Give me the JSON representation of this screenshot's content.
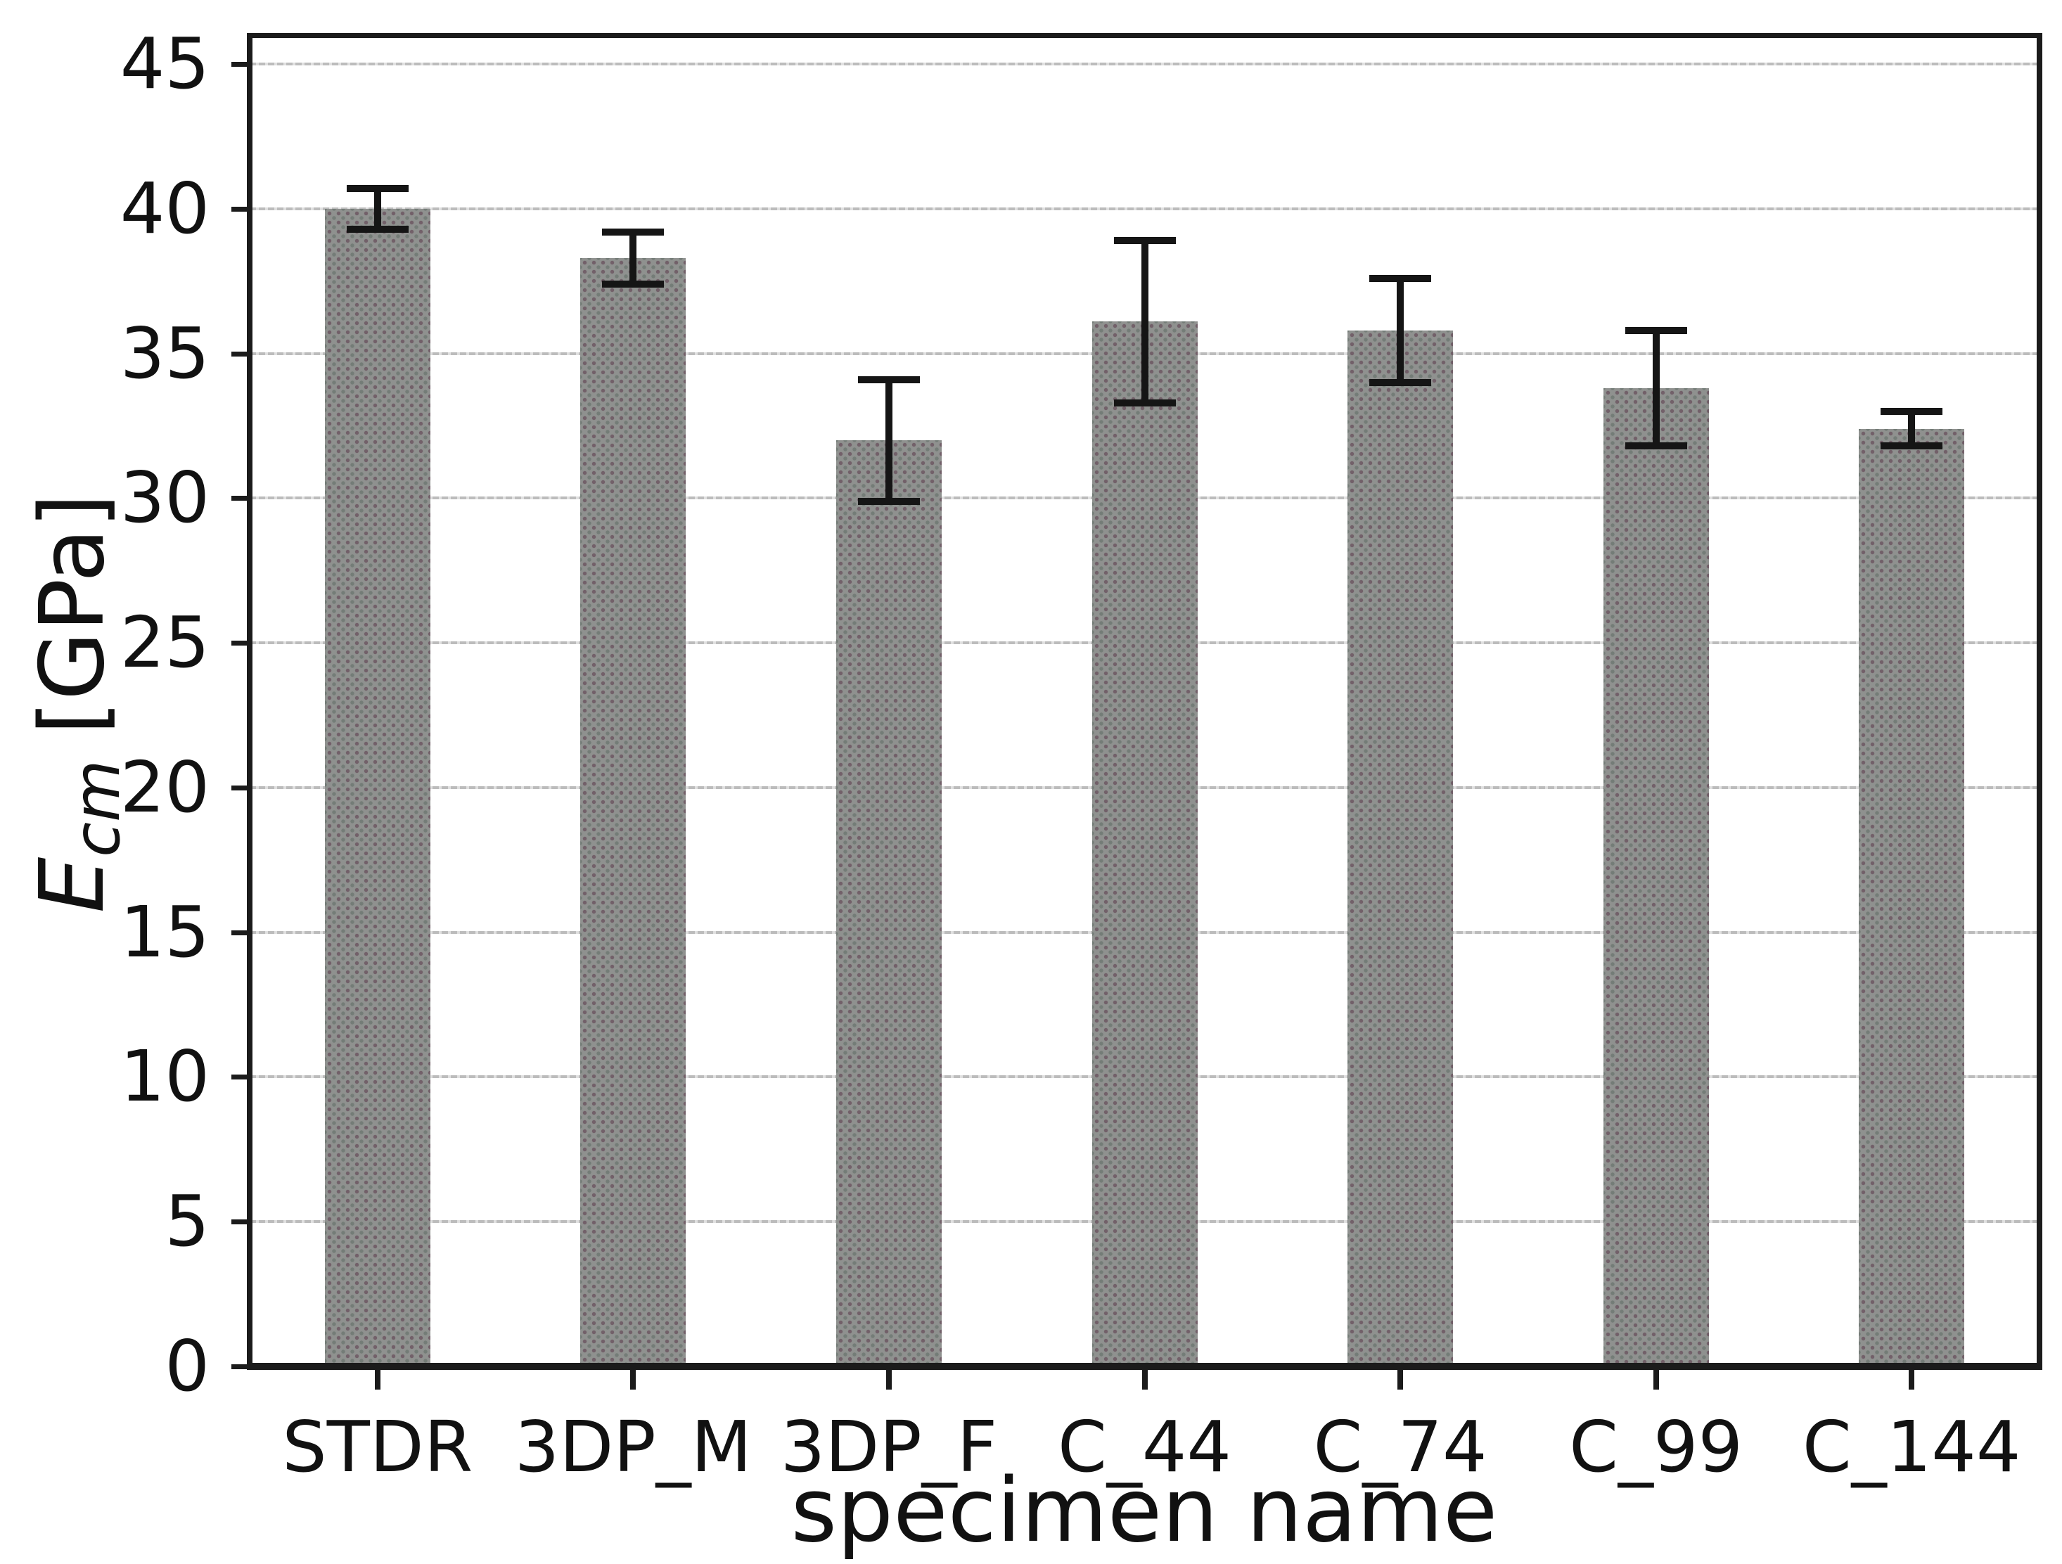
{
  "figure": {
    "xlabel": "specimen name",
    "ylabel": {
      "symbol": "E",
      "subscript": "cm",
      "unit": "[GPa]"
    }
  },
  "chart_data": {
    "type": "bar",
    "title": "",
    "xlabel": "specimen name",
    "ylabel": "E_cm [GPa]",
    "categories": [
      "STDR",
      "3DP_M",
      "3DP_F",
      "C_44",
      "C_74",
      "C_99",
      "C_144"
    ],
    "values": [
      40.0,
      38.3,
      32.0,
      36.1,
      35.8,
      33.8,
      32.4
    ],
    "errors": [
      0.7,
      0.9,
      2.1,
      2.8,
      1.8,
      2.0,
      0.6
    ],
    "ylim": [
      0,
      46
    ],
    "yticks": [
      0,
      5,
      10,
      15,
      20,
      25,
      30,
      35,
      40,
      45
    ],
    "grid": true,
    "legend": false,
    "bar_color": "#8f918f",
    "error_color": "#151515",
    "grid_color": "#bcbcbc",
    "spine_color": "#1b1b1b"
  }
}
